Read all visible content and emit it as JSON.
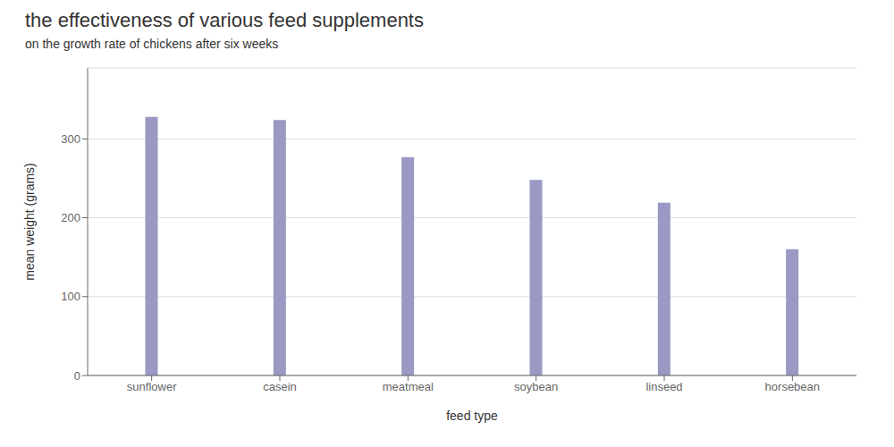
{
  "chart_data": {
    "type": "bar",
    "title": "the effectiveness of various feed supplements",
    "subtitle": "on the growth rate of chickens after six weeks",
    "categories": [
      "sunflower",
      "casein",
      "meatmeal",
      "soybean",
      "linseed",
      "horsebean"
    ],
    "values": [
      328,
      324,
      277,
      248,
      219,
      160
    ],
    "color": "#9999C3",
    "xlabel": "feed type",
    "ylabel": "mean weight (grams)",
    "ylim": [
      0,
      390
    ],
    "yticks": [
      0,
      100,
      200,
      300
    ],
    "grid": true
  }
}
